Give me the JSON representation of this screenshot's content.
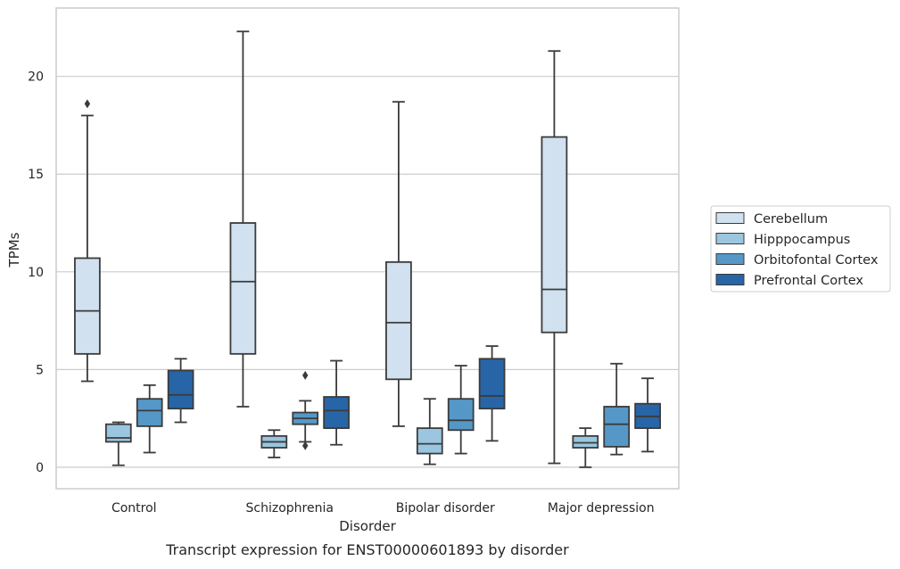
{
  "caption": "Transcript expression for ENST00000601893 by disorder",
  "chart_data": {
    "type": "box",
    "xlabel": "Disorder",
    "ylabel": "TPMs",
    "ylim": [
      -1.1,
      23.5
    ],
    "yticks": [
      0,
      5,
      10,
      15,
      20
    ],
    "grid": "horizontal",
    "legend_position": "right",
    "categories": [
      "Control",
      "Schizophrenia",
      "Bipolar disorder",
      "Major depression"
    ],
    "series": [
      {
        "name": "Cerebellum",
        "color": "#d1e1f0",
        "boxes": [
          {
            "whisker_low": 4.4,
            "q1": 5.8,
            "median": 8.0,
            "q3": 10.7,
            "whisker_high": 18.0,
            "outliers": [
              18.6
            ]
          },
          {
            "whisker_low": 3.1,
            "q1": 5.8,
            "median": 9.5,
            "q3": 12.5,
            "whisker_high": 22.3,
            "outliers": []
          },
          {
            "whisker_low": 2.1,
            "q1": 4.5,
            "median": 7.4,
            "q3": 10.5,
            "whisker_high": 18.7,
            "outliers": []
          },
          {
            "whisker_low": 0.2,
            "q1": 6.9,
            "median": 9.1,
            "q3": 16.9,
            "whisker_high": 21.3,
            "outliers": []
          }
        ]
      },
      {
        "name": "Hipppocampus",
        "color": "#9ac6df",
        "boxes": [
          {
            "whisker_low": 0.1,
            "q1": 1.3,
            "median": 1.5,
            "q3": 2.2,
            "whisker_high": 2.3,
            "outliers": []
          },
          {
            "whisker_low": 0.5,
            "q1": 1.0,
            "median": 1.3,
            "q3": 1.6,
            "whisker_high": 1.9,
            "outliers": []
          },
          {
            "whisker_low": 0.15,
            "q1": 0.7,
            "median": 1.2,
            "q3": 2.0,
            "whisker_high": 3.5,
            "outliers": []
          },
          {
            "whisker_low": 0.0,
            "q1": 1.0,
            "median": 1.25,
            "q3": 1.6,
            "whisker_high": 2.0,
            "outliers": []
          }
        ]
      },
      {
        "name": "Orbitofontal Cortex",
        "color": "#5598c8",
        "boxes": [
          {
            "whisker_low": 0.75,
            "q1": 2.1,
            "median": 2.9,
            "q3": 3.5,
            "whisker_high": 4.2,
            "outliers": []
          },
          {
            "whisker_low": 1.3,
            "q1": 2.2,
            "median": 2.5,
            "q3": 2.8,
            "whisker_high": 3.4,
            "outliers": [
              4.7,
              1.1
            ]
          },
          {
            "whisker_low": 0.7,
            "q1": 1.9,
            "median": 2.4,
            "q3": 3.5,
            "whisker_high": 5.2,
            "outliers": []
          },
          {
            "whisker_low": 0.65,
            "q1": 1.05,
            "median": 2.2,
            "q3": 3.1,
            "whisker_high": 5.3,
            "outliers": []
          }
        ]
      },
      {
        "name": "Prefrontal Cortex",
        "color": "#2765a6",
        "boxes": [
          {
            "whisker_low": 2.3,
            "q1": 3.0,
            "median": 3.7,
            "q3": 4.95,
            "whisker_high": 5.55,
            "outliers": []
          },
          {
            "whisker_low": 1.15,
            "q1": 2.0,
            "median": 2.9,
            "q3": 3.6,
            "whisker_high": 5.45,
            "outliers": []
          },
          {
            "whisker_low": 1.35,
            "q1": 3.0,
            "median": 3.65,
            "q3": 5.55,
            "whisker_high": 6.2,
            "outliers": []
          },
          {
            "whisker_low": 0.8,
            "q1": 2.0,
            "median": 2.6,
            "q3": 3.25,
            "whisker_high": 4.55,
            "outliers": []
          }
        ]
      }
    ]
  }
}
